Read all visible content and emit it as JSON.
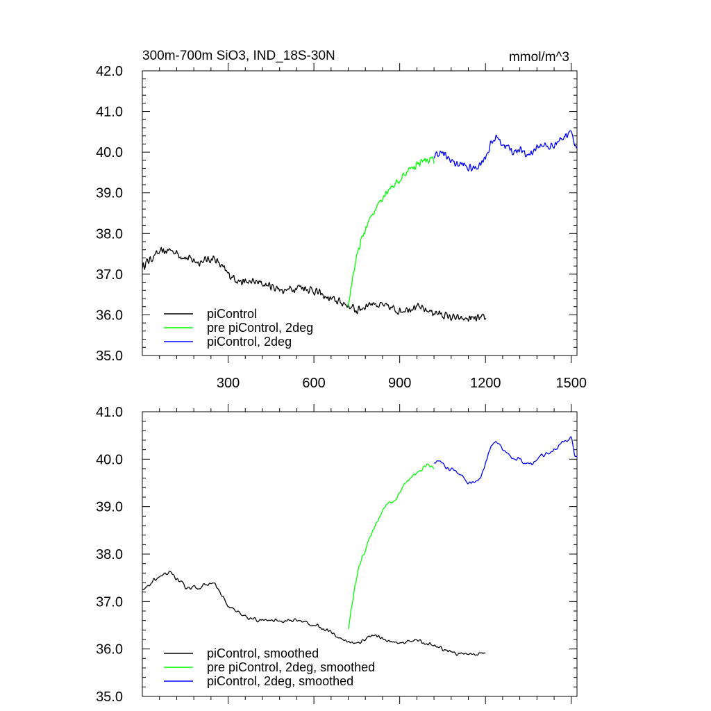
{
  "chart_data": [
    {
      "type": "line",
      "title": "300m-700m SiO3, IND_18S-30N",
      "units_label": "mmol/m^3",
      "xlim": [
        0,
        1520
      ],
      "ylim": [
        35.0,
        42.0
      ],
      "x_ticks": [
        300,
        600,
        900,
        1200,
        1500
      ],
      "x_tick_labels": [
        "300",
        "600",
        "900",
        "1200",
        "1500"
      ],
      "y_ticks": [
        35.0,
        36.0,
        37.0,
        38.0,
        39.0,
        40.0,
        41.0,
        42.0
      ],
      "y_tick_labels": [
        "35.0",
        "36.0",
        "37.0",
        "38.0",
        "39.0",
        "40.0",
        "41.0",
        "42.0"
      ],
      "legend_position": "bottom-left",
      "series": [
        {
          "name": "piControl",
          "color": "#000000",
          "x": [
            0,
            50,
            100,
            150,
            200,
            250,
            300,
            350,
            400,
            450,
            500,
            550,
            600,
            650,
            700,
            750,
            800,
            850,
            900,
            950,
            1000,
            1050,
            1100,
            1150,
            1200
          ],
          "y": [
            37.2,
            37.5,
            37.6,
            37.4,
            37.3,
            37.4,
            37.0,
            36.8,
            36.8,
            36.7,
            36.6,
            36.7,
            36.6,
            36.4,
            36.3,
            36.1,
            36.3,
            36.2,
            36.1,
            36.2,
            36.1,
            36.0,
            35.9,
            35.9,
            35.9
          ]
        },
        {
          "name": "pre piControl, 2deg",
          "color": "#00ff00",
          "x": [
            720,
            730,
            740,
            760,
            780,
            800,
            820,
            840,
            860,
            880,
            900,
            920,
            940,
            960,
            980,
            1000,
            1020
          ],
          "y": [
            36.2,
            36.7,
            37.1,
            37.7,
            38.1,
            38.4,
            38.7,
            38.9,
            39.1,
            39.2,
            39.3,
            39.5,
            39.6,
            39.7,
            39.8,
            39.8,
            39.8
          ]
        },
        {
          "name": "piControl, 2deg",
          "color": "#0000ff",
          "x": [
            1020,
            1040,
            1060,
            1080,
            1100,
            1120,
            1140,
            1160,
            1180,
            1200,
            1220,
            1240,
            1260,
            1280,
            1300,
            1320,
            1340,
            1360,
            1380,
            1400,
            1420,
            1440,
            1460,
            1480,
            1500,
            1510,
            1520
          ],
          "y": [
            39.9,
            40.0,
            39.9,
            39.8,
            39.7,
            39.7,
            39.6,
            39.6,
            39.7,
            39.9,
            40.2,
            40.4,
            40.2,
            40.1,
            40.0,
            40.1,
            39.9,
            40.0,
            40.1,
            40.2,
            40.1,
            40.2,
            40.3,
            40.4,
            40.6,
            40.2,
            40.0
          ]
        }
      ]
    },
    {
      "type": "line",
      "xlim": [
        0,
        1520
      ],
      "ylim": [
        35.0,
        41.0
      ],
      "x_ticks": [
        300,
        600,
        900,
        1200,
        1500
      ],
      "y_ticks": [
        35.0,
        36.0,
        37.0,
        38.0,
        39.0,
        40.0,
        41.0
      ],
      "y_tick_labels": [
        "35.0",
        "36.0",
        "37.0",
        "38.0",
        "39.0",
        "40.0",
        "41.0"
      ],
      "legend_position": "bottom-left",
      "series": [
        {
          "name": "piControl, smoothed",
          "color": "#000000",
          "x": [
            0,
            50,
            100,
            150,
            200,
            250,
            300,
            350,
            400,
            450,
            500,
            550,
            600,
            650,
            700,
            750,
            800,
            850,
            900,
            950,
            1000,
            1050,
            1100,
            1150,
            1200
          ],
          "y": [
            37.2,
            37.5,
            37.6,
            37.3,
            37.3,
            37.4,
            36.9,
            36.7,
            36.6,
            36.6,
            36.6,
            36.6,
            36.5,
            36.4,
            36.2,
            36.1,
            36.3,
            36.2,
            36.1,
            36.2,
            36.1,
            36.0,
            35.9,
            35.9,
            35.9
          ]
        },
        {
          "name": "pre piControl, 2deg, smoothed",
          "color": "#00ff00",
          "x": [
            720,
            730,
            740,
            760,
            780,
            800,
            820,
            840,
            860,
            880,
            900,
            920,
            940,
            960,
            980,
            1000,
            1020
          ],
          "y": [
            36.4,
            36.8,
            37.2,
            37.8,
            38.1,
            38.4,
            38.7,
            38.9,
            39.1,
            39.1,
            39.3,
            39.5,
            39.6,
            39.7,
            39.8,
            39.9,
            39.8
          ]
        },
        {
          "name": "piControl, 2deg, smoothed",
          "color": "#0000ff",
          "x": [
            1020,
            1040,
            1060,
            1080,
            1100,
            1120,
            1140,
            1160,
            1180,
            1200,
            1220,
            1240,
            1260,
            1280,
            1300,
            1320,
            1340,
            1360,
            1380,
            1400,
            1420,
            1440,
            1460,
            1480,
            1500,
            1510,
            1520
          ],
          "y": [
            39.9,
            40.0,
            39.8,
            39.8,
            39.7,
            39.6,
            39.5,
            39.5,
            39.6,
            39.9,
            40.3,
            40.4,
            40.2,
            40.1,
            40.0,
            40.0,
            39.9,
            39.9,
            40.0,
            40.1,
            40.1,
            40.2,
            40.3,
            40.4,
            40.5,
            40.1,
            40.0
          ]
        }
      ]
    }
  ]
}
